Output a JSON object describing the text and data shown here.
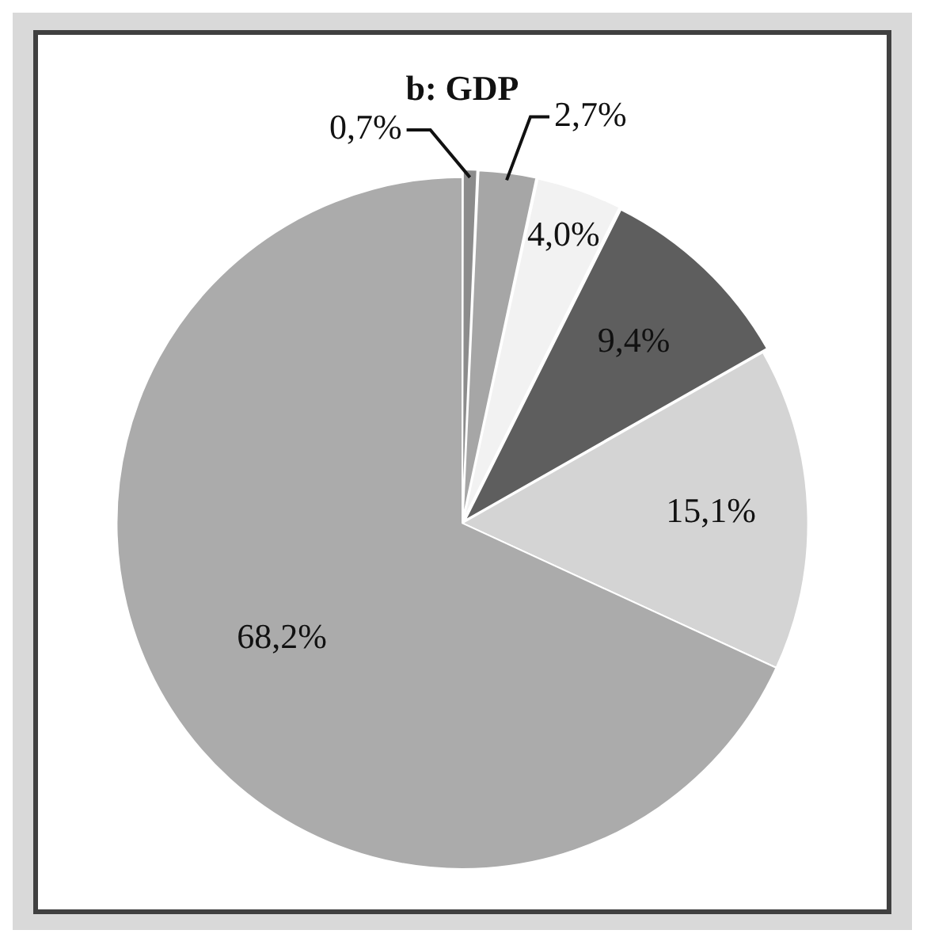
{
  "chart_data": {
    "type": "pie",
    "title": "b: GDP",
    "categories": [
      null,
      null,
      null,
      null,
      null,
      null
    ],
    "values": [
      0.7,
      2.7,
      4.0,
      9.4,
      15.1,
      68.2
    ],
    "value_labels": [
      "0,7%",
      "2,7%",
      "4,0%",
      "9,4%",
      "15,1%",
      "68,2%"
    ],
    "colors": [
      "#8c8c8c",
      "#a6a6a6",
      "#f2f2f2",
      "#5e5e5e",
      "#d4d4d4",
      "#ababab"
    ],
    "legend": false
  }
}
